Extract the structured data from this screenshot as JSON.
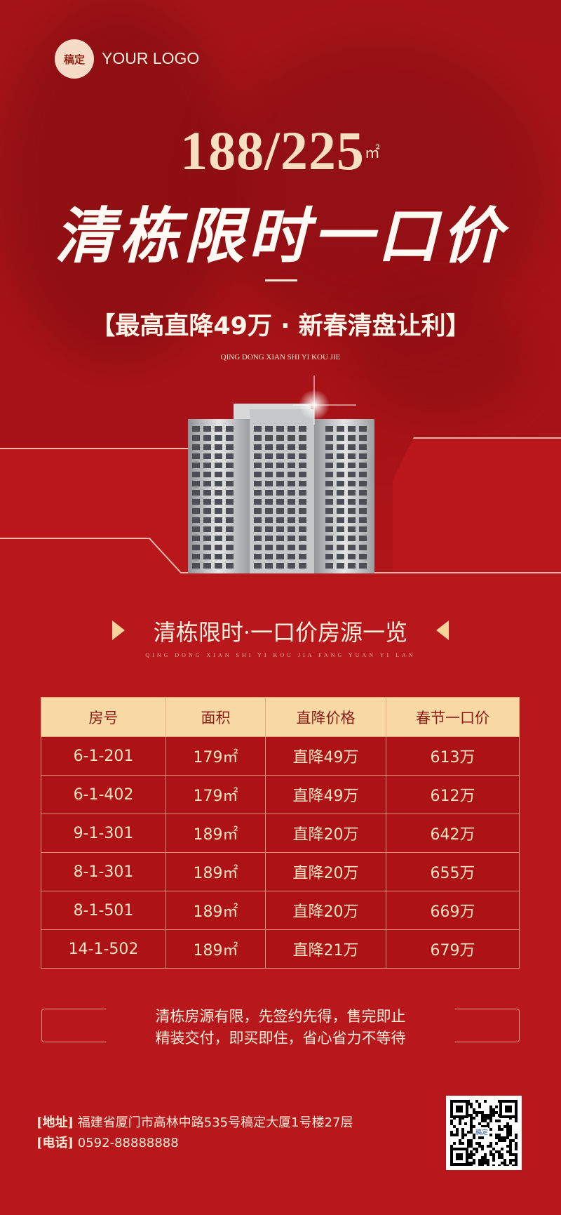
{
  "logo": {
    "badge": "稿定",
    "text": "YOUR LOGO"
  },
  "hero": {
    "area": "188/225",
    "area_unit": "㎡",
    "title": "清栋限时一口价",
    "subtitle": "【最高直降49万 · 新春清盘让利】",
    "pinyin": "QING DONG XIAN SHI YI KOU JIE"
  },
  "section": {
    "title": "清栋限时·一口价房源一览",
    "pinyin": "QING DONG XIAN SHI YI KOU JIA FANG YUAN YI LAN"
  },
  "table": {
    "headers": [
      "房号",
      "面积",
      "直降价格",
      "春节一口价"
    ],
    "rows": [
      [
        "6-1-201",
        "179㎡",
        "直降49万",
        "613万"
      ],
      [
        "6-1-402",
        "179㎡",
        "直降49万",
        "612万"
      ],
      [
        "9-1-301",
        "189㎡",
        "直降20万",
        "642万"
      ],
      [
        "8-1-301",
        "189㎡",
        "直降20万",
        "655万"
      ],
      [
        "8-1-501",
        "189㎡",
        "直降20万",
        "669万"
      ],
      [
        "14-1-502",
        "189㎡",
        "直降21万",
        "679万"
      ]
    ]
  },
  "notice": {
    "line1": "清栋房源有限，先签约先得，售完即止",
    "line2": "精装交付，即买即住，省心省力不等待"
  },
  "contact": {
    "address_label": "[地址]",
    "address": "福建省厦门市高林中路535号稿定大厦1号楼27层",
    "phone_label": "[电话]",
    "phone": "0592-88888888",
    "qr_badge": "稿定"
  },
  "colors": {
    "background": "#b01518",
    "accent": "#f8d8a4",
    "text": "#f8e6c8"
  }
}
